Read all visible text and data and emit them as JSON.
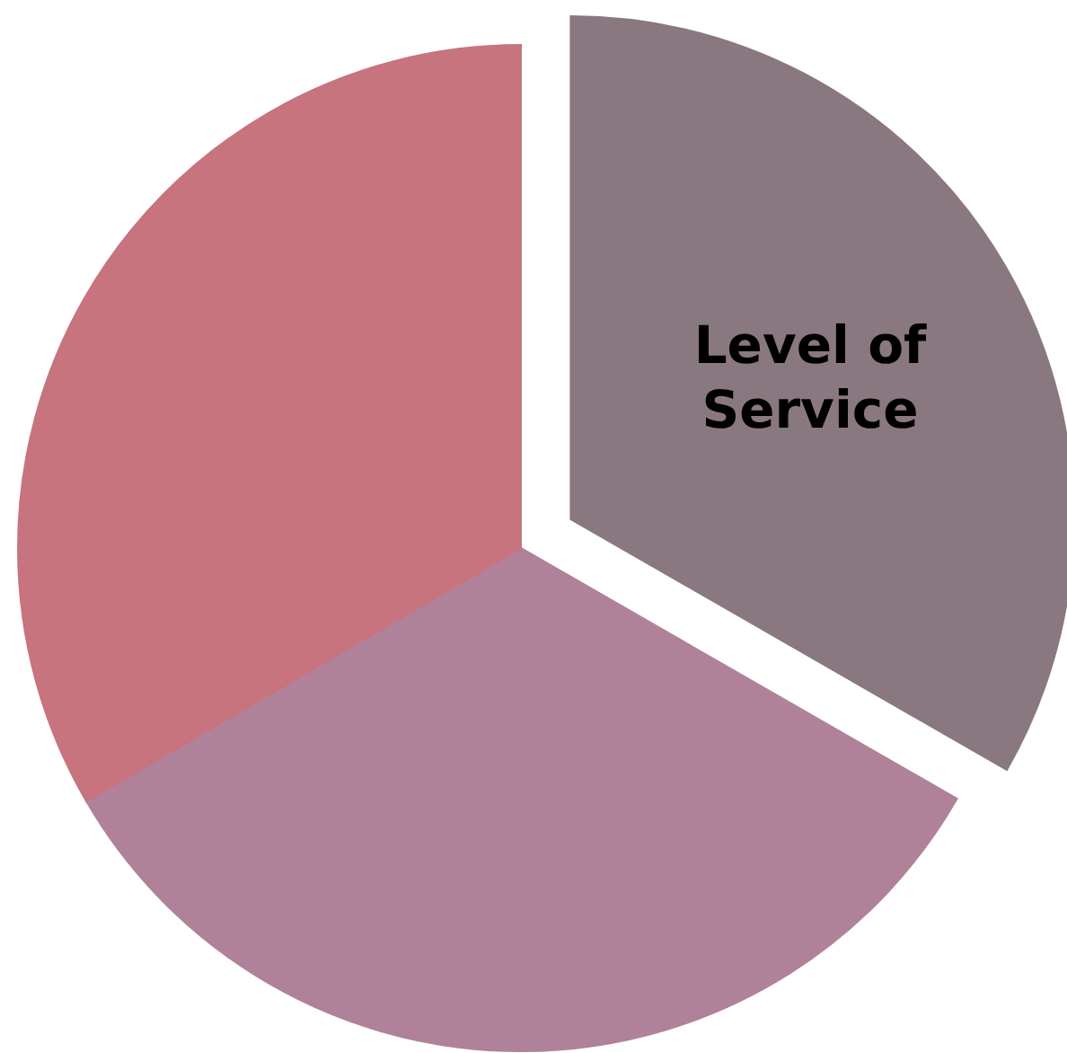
{
  "chart_data": {
    "type": "pie",
    "categories": [
      "Level of Service",
      null,
      null
    ],
    "values": [
      33.3,
      33.3,
      33.4
    ],
    "colors": [
      "#8a7880",
      "#b0829a",
      "#c7747f"
    ]
  }
}
